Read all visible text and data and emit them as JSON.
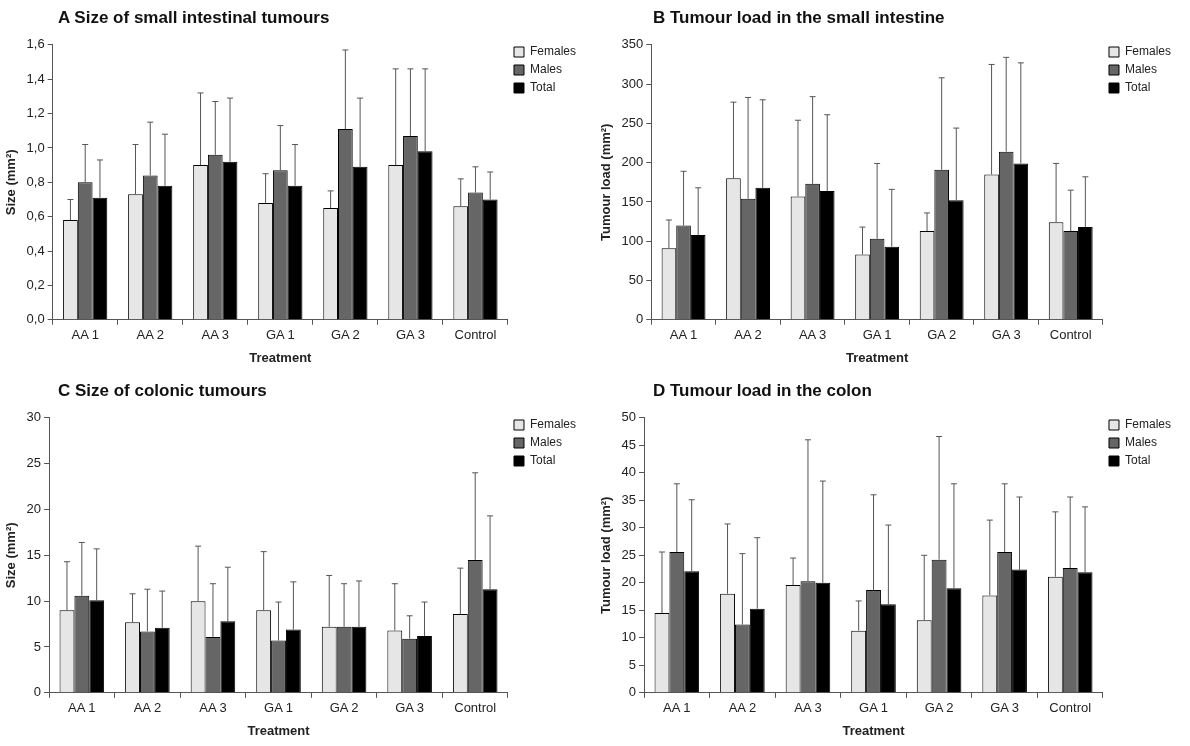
{
  "chart_data": [
    {
      "type": "bar",
      "title": "A  Size of small intestinal tumours",
      "xlabel": "Treatment",
      "ylabel": "Size (mm²)",
      "legend": "top right",
      "categories": [
        "AA 1",
        "AA 2",
        "AA 3",
        "GA 1",
        "GA 2",
        "GA 3",
        "Control"
      ],
      "ylim": [
        0,
        1.6
      ],
      "yticks": [
        {
          "value": 0,
          "label": "0,0"
        },
        {
          "value": 0.2,
          "label": "0,2"
        },
        {
          "value": 0.4,
          "label": "0,4"
        },
        {
          "value": 0.6,
          "label": "0,6"
        },
        {
          "value": 0.8,
          "label": "0,8"
        },
        {
          "value": 1.0,
          "label": "1,0"
        },
        {
          "value": 1.2,
          "label": "1,2"
        },
        {
          "value": 1.4,
          "label": "1,4"
        },
        {
          "value": 1.6,
          "label": "1,6"
        }
      ],
      "series": [
        {
          "name": "Females",
          "color": "#e6e6e6",
          "values": [
            0.58,
            0.73,
            0.9,
            0.68,
            0.65,
            0.9,
            0.66
          ],
          "errors": [
            [
              0.58,
              0.7
            ],
            [
              0.73,
              1.02
            ],
            [
              0.9,
              1.32
            ],
            [
              0.68,
              0.85
            ],
            [
              0.65,
              0.75
            ],
            [
              0.9,
              1.46
            ],
            [
              0.66,
              0.82
            ]
          ]
        },
        {
          "name": "Males",
          "color": "#666666",
          "values": [
            0.8,
            0.84,
            0.96,
            0.87,
            1.11,
            1.07,
            0.74
          ],
          "errors": [
            [
              0.8,
              1.02
            ],
            [
              0.84,
              1.15
            ],
            [
              0.96,
              1.27
            ],
            [
              0.87,
              1.13
            ],
            [
              1.11,
              1.57
            ],
            [
              1.07,
              1.46
            ],
            [
              0.74,
              0.89
            ]
          ]
        },
        {
          "name": "Total",
          "color": "#000000",
          "values": [
            0.71,
            0.78,
            0.92,
            0.78,
            0.89,
            0.98,
            0.7
          ],
          "errors": [
            [
              0.71,
              0.93
            ],
            [
              0.78,
              1.08
            ],
            [
              0.92,
              1.29
            ],
            [
              0.78,
              1.02
            ],
            [
              0.89,
              1.29
            ],
            [
              0.98,
              1.46
            ],
            [
              0.7,
              0.86
            ]
          ]
        }
      ]
    },
    {
      "type": "bar",
      "title": "B Tumour load in the small intestine",
      "xlabel": "Treatment",
      "ylabel": "Tumour load (mm²)",
      "legend": "top right",
      "categories": [
        "AA 1",
        "AA 2",
        "AA 3",
        "GA 1",
        "GA 2",
        "GA 3",
        "Control"
      ],
      "ylim": [
        0,
        350
      ],
      "yticks": [
        0,
        50,
        100,
        150,
        200,
        250,
        300,
        350
      ],
      "series": [
        {
          "name": "Females",
          "color": "#e6e6e6",
          "values": [
            91,
            180,
            157,
            83,
            113,
            185,
            124
          ],
          "errors": [
            [
              91,
              127
            ],
            [
              180,
              277
            ],
            [
              157,
              254
            ],
            [
              83,
              118
            ],
            [
              113,
              136
            ],
            [
              185,
              325
            ],
            [
              124,
              199
            ]
          ]
        },
        {
          "name": "Males",
          "color": "#666666",
          "values": [
            120,
            154,
            173,
            103,
            191,
            214,
            113
          ],
          "errors": [
            [
              120,
              189
            ],
            [
              154,
              283
            ],
            [
              173,
              284
            ],
            [
              103,
              199
            ],
            [
              191,
              308
            ],
            [
              214,
              334
            ],
            [
              113,
              165
            ]
          ]
        },
        {
          "name": "Total",
          "color": "#000000",
          "values": [
            108,
            168,
            164,
            93,
            152,
            199,
            118
          ],
          "errors": [
            [
              108,
              168
            ],
            [
              168,
              280
            ],
            [
              164,
              261
            ],
            [
              93,
              166
            ],
            [
              152,
              244
            ],
            [
              199,
              327
            ],
            [
              118,
              182
            ]
          ]
        }
      ]
    },
    {
      "type": "bar",
      "title": "C  Size of colonic tumours",
      "xlabel": "Treatment",
      "ylabel": "Size (mm²)",
      "legend": "top right",
      "categories": [
        "AA 1",
        "AA 2",
        "AA 3",
        "GA 1",
        "GA 2",
        "GA 3",
        "Control"
      ],
      "ylim": [
        0,
        30
      ],
      "yticks": [
        0,
        5,
        10,
        15,
        20,
        25,
        30
      ],
      "series": [
        {
          "name": "Females",
          "color": "#e6e6e6",
          "values": [
            9.0,
            7.7,
            10.0,
            9.0,
            7.2,
            6.8,
            8.6
          ],
          "errors": [
            [
              9.0,
              14.3
            ],
            [
              7.7,
              10.8
            ],
            [
              10.0,
              16.0
            ],
            [
              9.0,
              15.4
            ],
            [
              7.2,
              12.8
            ],
            [
              6.8,
              11.9
            ],
            [
              8.6,
              13.6
            ]
          ]
        },
        {
          "name": "Males",
          "color": "#666666",
          "values": [
            10.6,
            6.7,
            6.1,
            5.7,
            7.2,
            5.9,
            14.5
          ],
          "errors": [
            [
              10.6,
              16.4
            ],
            [
              6.7,
              11.3
            ],
            [
              6.1,
              11.9
            ],
            [
              5.7,
              9.9
            ],
            [
              7.2,
              11.9
            ],
            [
              5.9,
              8.4
            ],
            [
              14.5,
              24.0
            ]
          ]
        },
        {
          "name": "Total",
          "color": "#000000",
          "values": [
            10.1,
            7.1,
            7.8,
            6.9,
            7.2,
            6.2,
            11.3
          ],
          "errors": [
            [
              10.1,
              15.7
            ],
            [
              7.1,
              11.1
            ],
            [
              7.8,
              13.7
            ],
            [
              6.9,
              12.1
            ],
            [
              7.2,
              12.2
            ],
            [
              6.2,
              9.9
            ],
            [
              11.3,
              19.3
            ]
          ]
        }
      ]
    },
    {
      "type": "bar",
      "title": "D  Tumour load in the colon",
      "xlabel": "Treatment",
      "ylabel": "Tumour load (mm²)",
      "legend": "top right",
      "categories": [
        "AA 1",
        "AA 2",
        "AA 3",
        "GA 1",
        "GA 2",
        "GA 3",
        "Control"
      ],
      "ylim": [
        0,
        50
      ],
      "yticks": [
        0,
        5,
        10,
        15,
        20,
        25,
        30,
        35,
        40,
        45,
        50
      ],
      "series": [
        {
          "name": "Females",
          "color": "#e6e6e6",
          "values": [
            14.5,
            18.0,
            19.6,
            11.3,
            13.2,
            17.7,
            21.1
          ],
          "errors": [
            [
              14.5,
              25.6
            ],
            [
              18.0,
              30.7
            ],
            [
              19.6,
              24.5
            ],
            [
              11.3,
              16.7
            ],
            [
              13.2,
              25.0
            ],
            [
              17.7,
              31.4
            ],
            [
              21.1,
              32.9
            ]
          ]
        },
        {
          "name": "Males",
          "color": "#666666",
          "values": [
            25.6,
            12.4,
            20.3,
            18.7,
            24.2,
            25.6,
            22.7
          ],
          "errors": [
            [
              25.6,
              38.0
            ],
            [
              12.4,
              25.3
            ],
            [
              20.3,
              46.0
            ],
            [
              18.7,
              36.0
            ],
            [
              24.2,
              46.6
            ],
            [
              25.6,
              38.0
            ],
            [
              22.7,
              35.6
            ]
          ]
        },
        {
          "name": "Total",
          "color": "#000000",
          "values": [
            22.1,
            15.3,
            20.0,
            16.1,
            19.0,
            22.4,
            21.9
          ],
          "errors": [
            [
              22.1,
              35.1
            ],
            [
              15.3,
              28.2
            ],
            [
              20.0,
              38.5
            ],
            [
              16.1,
              30.5
            ],
            [
              19.0,
              38.0
            ],
            [
              22.4,
              35.6
            ],
            [
              21.9,
              33.8
            ]
          ]
        }
      ]
    }
  ]
}
